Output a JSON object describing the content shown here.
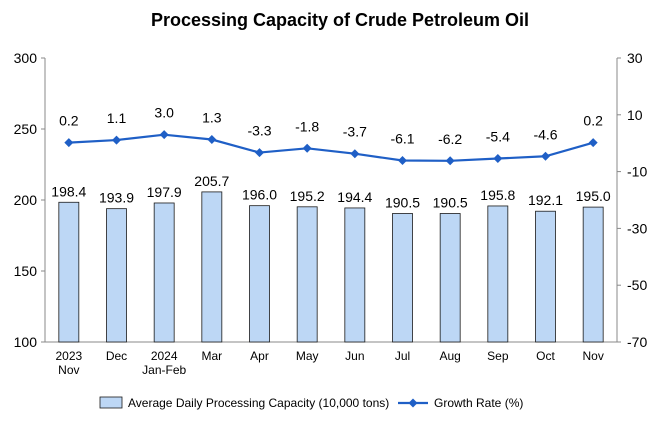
{
  "chart_data": {
    "type": "bar",
    "title": "Processing Capacity of Crude Petroleum Oil",
    "categories": [
      [
        "2023",
        "Nov"
      ],
      [
        "Dec"
      ],
      [
        "2024",
        "Jan-Feb"
      ],
      [
        "Mar"
      ],
      [
        "Apr"
      ],
      [
        "May"
      ],
      [
        "Jun"
      ],
      [
        "Jul"
      ],
      [
        "Aug"
      ],
      [
        "Sep"
      ],
      [
        "Oct"
      ],
      [
        "Nov"
      ]
    ],
    "series": [
      {
        "name": "Average Daily Processing Capacity (10,000 tons)",
        "kind": "bar",
        "axis": "left",
        "values": [
          198.4,
          193.9,
          197.9,
          205.7,
          196.0,
          195.2,
          194.4,
          190.5,
          190.5,
          195.8,
          192.1,
          195.0
        ],
        "labels": [
          "198.4",
          "193.9",
          "197.9",
          "205.7",
          "196.0",
          "195.2",
          "194.4",
          "190.5",
          "190.5",
          "195.8",
          "192.1",
          "195.0"
        ],
        "color": "#bdd7f5"
      },
      {
        "name": "Growth Rate (%)",
        "kind": "line",
        "axis": "right",
        "values": [
          0.2,
          1.1,
          3.0,
          1.3,
          -3.3,
          -1.8,
          -3.7,
          -6.1,
          -6.2,
          -5.4,
          -4.6,
          0.2
        ],
        "labels": [
          "0.2",
          "1.1",
          "3.0",
          "1.3",
          "-3.3",
          "-1.8",
          "-3.7",
          "-6.1",
          "-6.2",
          "-5.4",
          "-4.6",
          "0.2"
        ],
        "color": "#1f5fc6"
      }
    ],
    "y_left": {
      "min": 100,
      "max": 300,
      "ticks": [
        "100",
        "150",
        "200",
        "250",
        "300"
      ]
    },
    "y_right": {
      "min": -70,
      "max": 30,
      "ticks": [
        "-70",
        "-50",
        "-30",
        "-10",
        "10",
        "30"
      ]
    },
    "grid": false,
    "legend_position": "bottom"
  }
}
